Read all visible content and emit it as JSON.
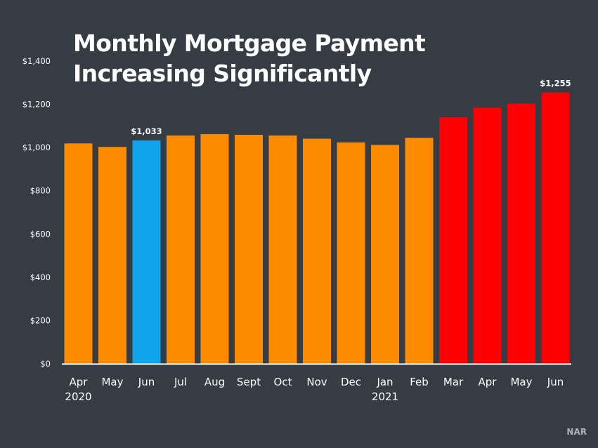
{
  "title_lines": [
    "Monthly Mortgage Payment",
    "Increasing Significantly"
  ],
  "source": "NAR",
  "colors": {
    "background": "#353c44",
    "orange": "#ff8b00",
    "blue": "#0ea5ec",
    "red": "#ff0000",
    "axis": "#ffffff",
    "text": "#ffffff"
  },
  "chart_data": {
    "type": "bar",
    "title": "Monthly Mortgage Payment Increasing Significantly",
    "xlabel": "",
    "ylabel": "",
    "ylim": [
      0,
      1400
    ],
    "grid": false,
    "y_ticks": [
      0,
      200,
      400,
      600,
      800,
      1000,
      1200,
      1400
    ],
    "y_tick_labels": [
      "$0",
      "$200",
      "$400",
      "$600",
      "$800",
      "$1,000",
      "$1,200",
      "$1,400"
    ],
    "categories": [
      "Apr",
      "May",
      "Jun",
      "Jul",
      "Aug",
      "Sept",
      "Oct",
      "Nov",
      "Dec",
      "Jan",
      "Feb",
      "Mar",
      "Apr",
      "May",
      "Jun"
    ],
    "year_labels": [
      {
        "index": 0,
        "text": "2020"
      },
      {
        "index": 9,
        "text": "2021"
      }
    ],
    "values": [
      1019,
      1003,
      1033,
      1056,
      1062,
      1059,
      1056,
      1041,
      1024,
      1012,
      1045,
      1140,
      1185,
      1203,
      1255
    ],
    "bar_colors": [
      "orange",
      "orange",
      "blue",
      "orange",
      "orange",
      "orange",
      "orange",
      "orange",
      "orange",
      "orange",
      "orange",
      "red",
      "red",
      "red",
      "red"
    ],
    "data_labels": [
      {
        "index": 2,
        "text": "$1,033"
      },
      {
        "index": 14,
        "text": "$1,255"
      }
    ]
  }
}
